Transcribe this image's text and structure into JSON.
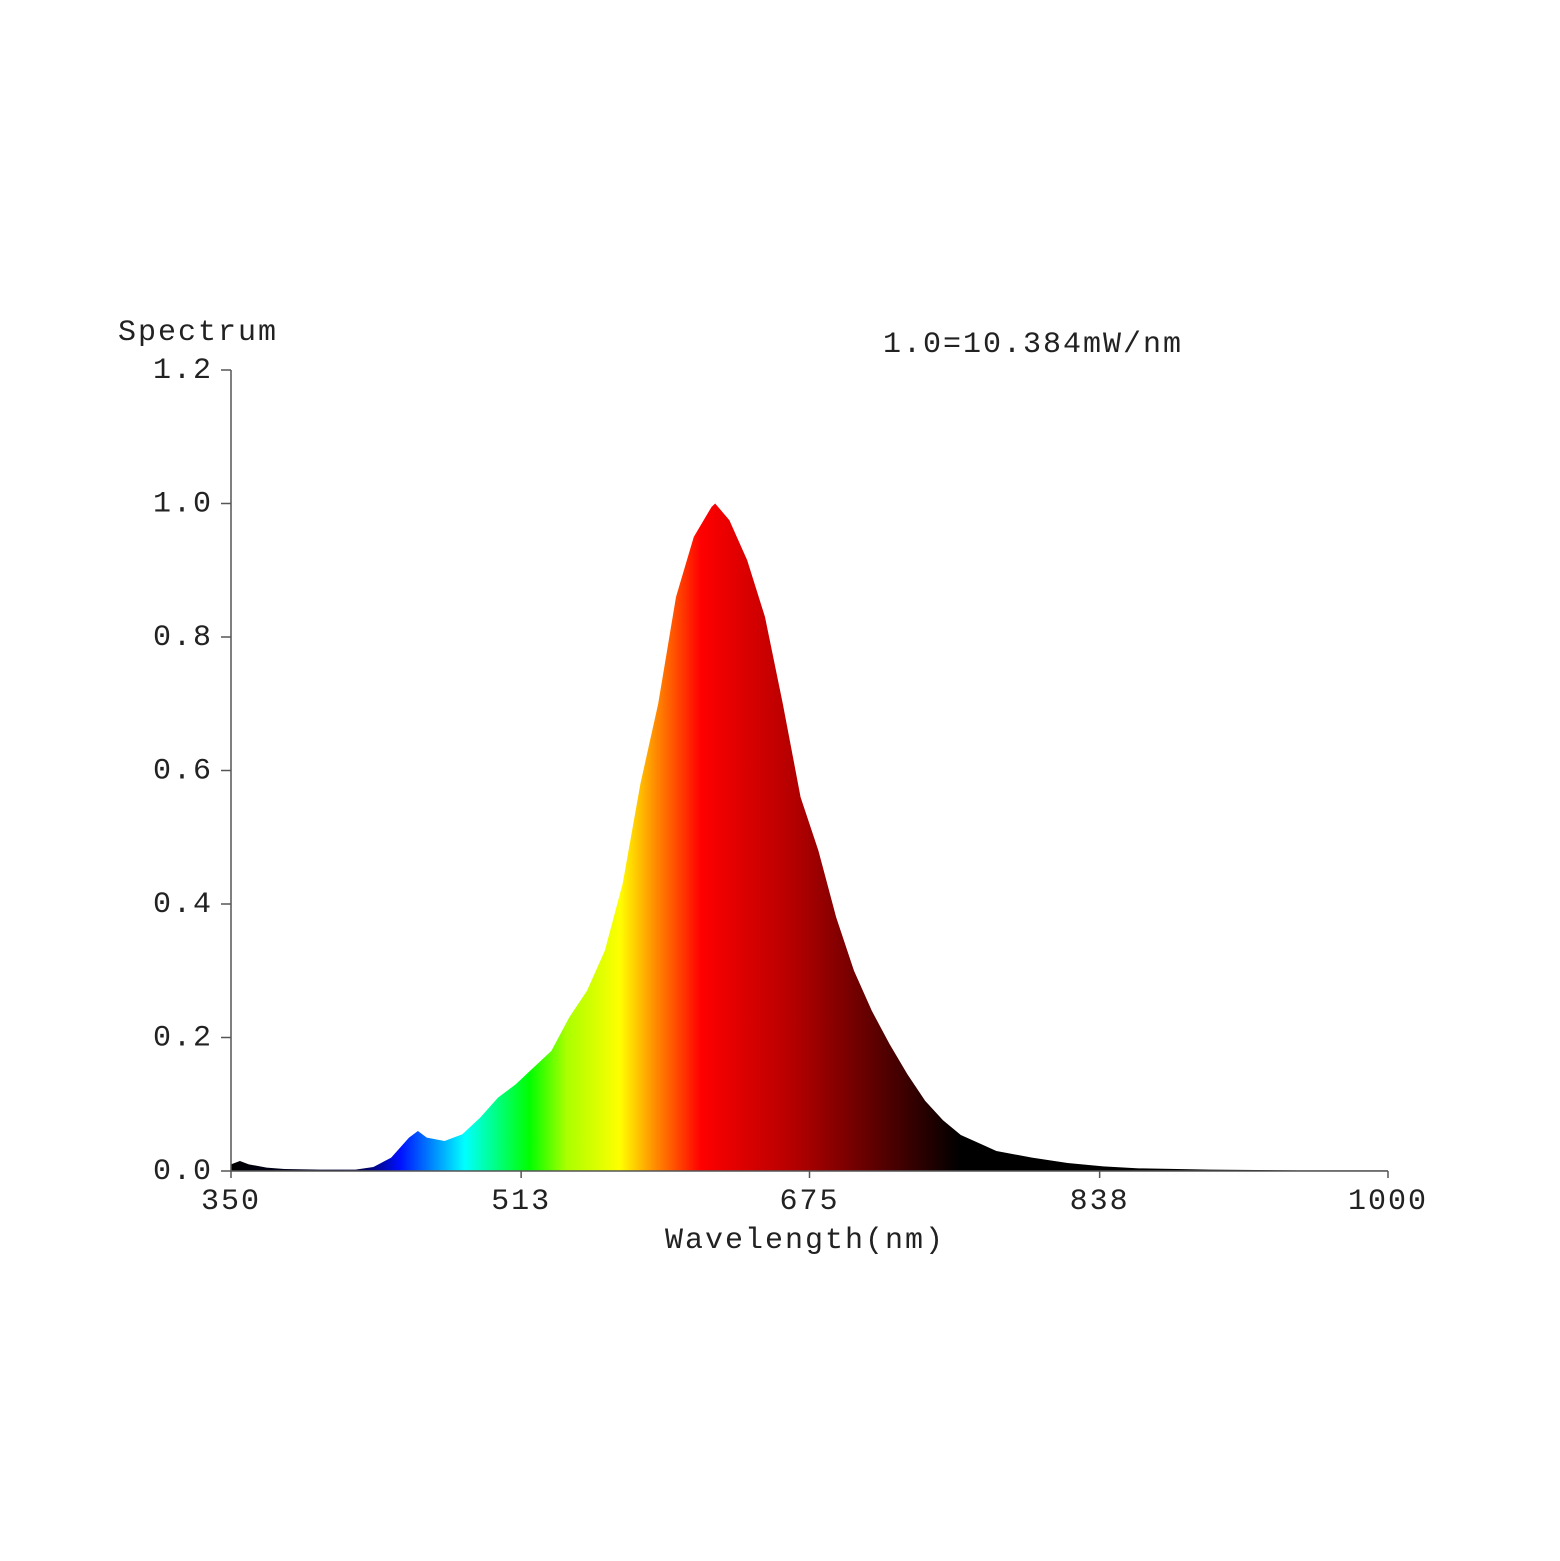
{
  "chart_data": {
    "type": "area",
    "y_label": "Spectrum",
    "annotation": "1.0=10.384mW/nm",
    "x_label": "Wavelength(nm)",
    "x": [
      350,
      355,
      360,
      370,
      380,
      400,
      420,
      430,
      440,
      450,
      455,
      460,
      470,
      480,
      490,
      500,
      510,
      520,
      530,
      540,
      550,
      560,
      570,
      580,
      590,
      600,
      610,
      620,
      622,
      630,
      640,
      650,
      660,
      670,
      680,
      690,
      700,
      710,
      720,
      730,
      740,
      750,
      760,
      780,
      800,
      820,
      840,
      860,
      900,
      950,
      1000
    ],
    "values": [
      0.01,
      0.015,
      0.01,
      0.005,
      0.003,
      0.002,
      0.002,
      0.006,
      0.02,
      0.05,
      0.06,
      0.05,
      0.045,
      0.055,
      0.08,
      0.11,
      0.13,
      0.155,
      0.18,
      0.23,
      0.27,
      0.33,
      0.43,
      0.58,
      0.7,
      0.86,
      0.95,
      0.995,
      1.0,
      0.975,
      0.915,
      0.83,
      0.7,
      0.56,
      0.48,
      0.38,
      0.3,
      0.24,
      0.19,
      0.145,
      0.105,
      0.076,
      0.054,
      0.03,
      0.02,
      0.012,
      0.007,
      0.004,
      0.002,
      0.001,
      0.001
    ],
    "xlim": [
      350,
      1000
    ],
    "xticks": [
      350,
      513,
      675,
      838,
      1000
    ],
    "ylim": [
      0,
      1.2
    ],
    "yticks": [
      {
        "value": 0,
        "label": "0.0"
      },
      0.2,
      0.4,
      0.6,
      0.8,
      {
        "value": 1,
        "label": "1.0"
      },
      1.2
    ]
  }
}
